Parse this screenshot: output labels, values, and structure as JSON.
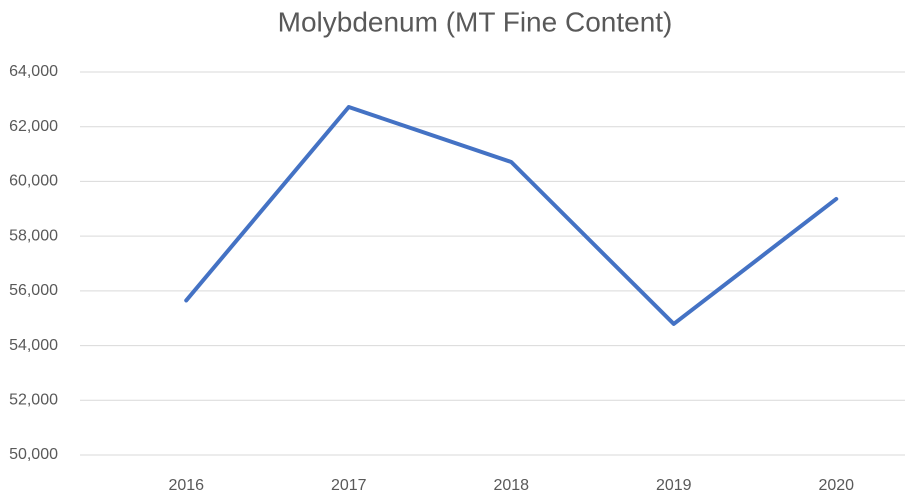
{
  "chart_data": {
    "type": "line",
    "title": "Molybdenum (MT Fine Content)",
    "categories": [
      "2016",
      "2017",
      "2018",
      "2019",
      "2020"
    ],
    "series": [
      {
        "name": "Molybdenum",
        "color": "#4472c4",
        "values": [
          55650,
          62720,
          60710,
          54790,
          59360
        ]
      }
    ],
    "ylim": [
      50000,
      64000
    ],
    "yticks": [
      {
        "value": 50000,
        "label": "50,000"
      },
      {
        "value": 52000,
        "label": "52,000"
      },
      {
        "value": 54000,
        "label": "54,000"
      },
      {
        "value": 56000,
        "label": "56,000"
      },
      {
        "value": 58000,
        "label": "58,000"
      },
      {
        "value": 60000,
        "label": "60,000"
      },
      {
        "value": 62000,
        "label": "62,000"
      },
      {
        "value": 64000,
        "label": "64,000"
      }
    ],
    "grid": true
  }
}
